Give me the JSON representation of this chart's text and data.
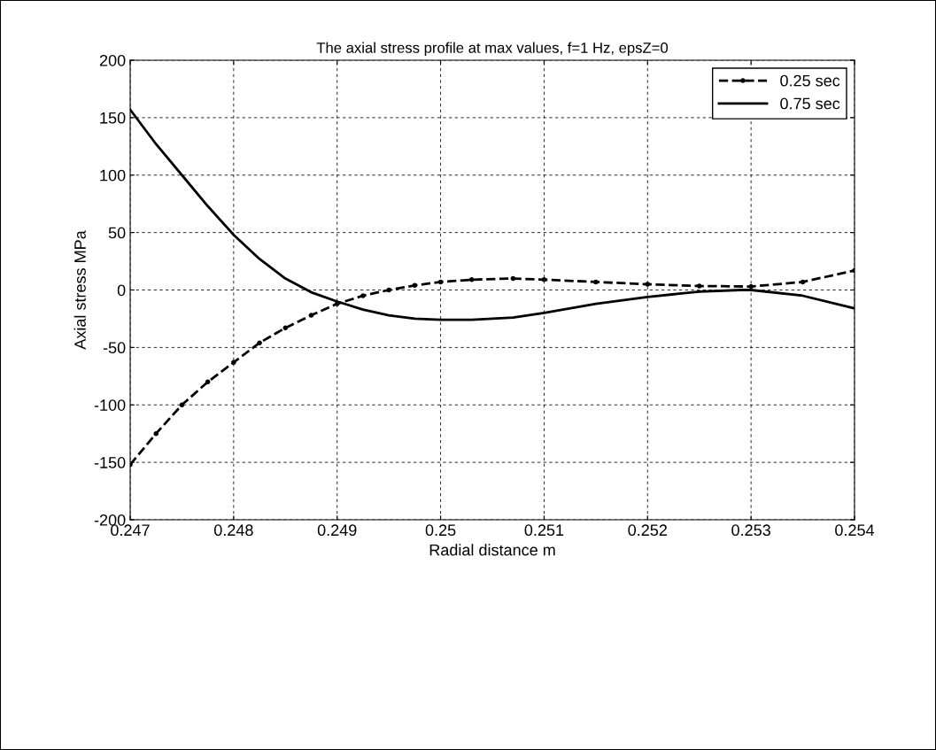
{
  "chart_data": {
    "type": "line",
    "title": "The axial stress profile at max values, f=1 Hz, epsZ=0",
    "xlabel": "Radial distance m",
    "ylabel": "Axial stress MPa",
    "xlim": [
      0.247,
      0.254
    ],
    "xticks": [
      0.247,
      0.248,
      0.249,
      0.25,
      0.251,
      0.252,
      0.253,
      0.254
    ],
    "ylim": [
      -200,
      200
    ],
    "yticks": [
      -200,
      -150,
      -100,
      -50,
      0,
      50,
      100,
      150,
      200
    ],
    "grid": true,
    "legend": "top right",
    "series": [
      {
        "name": "0.25 sec",
        "color": "#000000",
        "line_style": "dashed",
        "marker": "circle",
        "x": [
          0.247,
          0.24725,
          0.2475,
          0.24775,
          0.248,
          0.24825,
          0.2485,
          0.24875,
          0.249,
          0.24925,
          0.2495,
          0.24975,
          0.25,
          0.2503,
          0.2507,
          0.251,
          0.2515,
          0.252,
          0.2525,
          0.253,
          0.2535,
          0.254
        ],
        "values": [
          -152,
          -125,
          -100,
          -80,
          -63,
          -46,
          -33,
          -22,
          -12,
          -5,
          0,
          4,
          7,
          9,
          10,
          9,
          7,
          5,
          3.5,
          3,
          7,
          17
        ]
      },
      {
        "name": "0.75 sec",
        "color": "#000000",
        "line_style": "solid",
        "marker": "none",
        "x": [
          0.247,
          0.24725,
          0.2475,
          0.24775,
          0.248,
          0.24825,
          0.2485,
          0.24875,
          0.249,
          0.24925,
          0.2495,
          0.24975,
          0.25,
          0.2503,
          0.2507,
          0.251,
          0.2515,
          0.252,
          0.2525,
          0.2529,
          0.253,
          0.2535,
          0.254
        ],
        "values": [
          157,
          127,
          100,
          73,
          48,
          27,
          10,
          -2,
          -10,
          -17,
          -22,
          -25,
          -26,
          -26,
          -24,
          -20,
          -12,
          -6,
          -1.5,
          0,
          0,
          -5,
          -16
        ]
      }
    ]
  }
}
